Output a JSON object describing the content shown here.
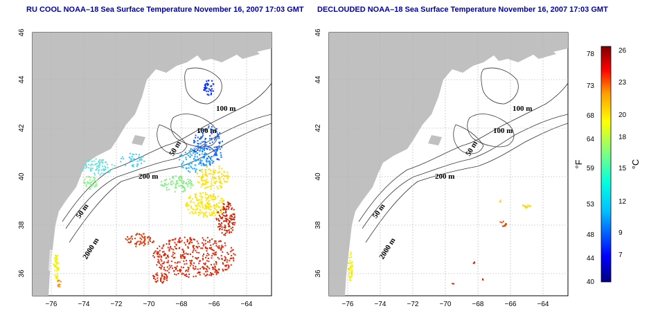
{
  "maps": [
    {
      "id": "left",
      "title": "RU COOL NOAA–18 Sea Surface Temperature November 16, 2007 17:03 GMT"
    },
    {
      "id": "right",
      "title": "DECLOUDED NOAA–18 Sea Surface Temperature November 16, 2007 17:03 GMT"
    }
  ],
  "axes": {
    "lon_ticks": [
      "−76",
      "−74",
      "−72",
      "−70",
      "−68",
      "−66",
      "−64"
    ],
    "lat_ticks": [
      "36",
      "38",
      "40",
      "42",
      "44",
      "46"
    ]
  },
  "contour_labels": [
    "100 m",
    "100 m",
    "50 m",
    "200 m",
    "50 m",
    "2000 m"
  ],
  "colorbar": {
    "fahrenheit_ticks": [
      "78",
      "73",
      "68",
      "64",
      "59",
      "53",
      "48",
      "44",
      "40"
    ],
    "celsius_ticks": [
      "26",
      "23",
      "20",
      "18",
      "15",
      "12",
      "9",
      "7"
    ],
    "fahrenheit_label": "°F",
    "celsius_label": "°C",
    "colors": [
      "#00007f",
      "#0000ff",
      "#007fff",
      "#00ffff",
      "#7fff7f",
      "#ffff00",
      "#ff7f00",
      "#ff0000",
      "#7f0000"
    ]
  },
  "colors": {
    "land": "#c0c0c0",
    "title": "#0000a0",
    "grid": "#b0b0b0"
  }
}
